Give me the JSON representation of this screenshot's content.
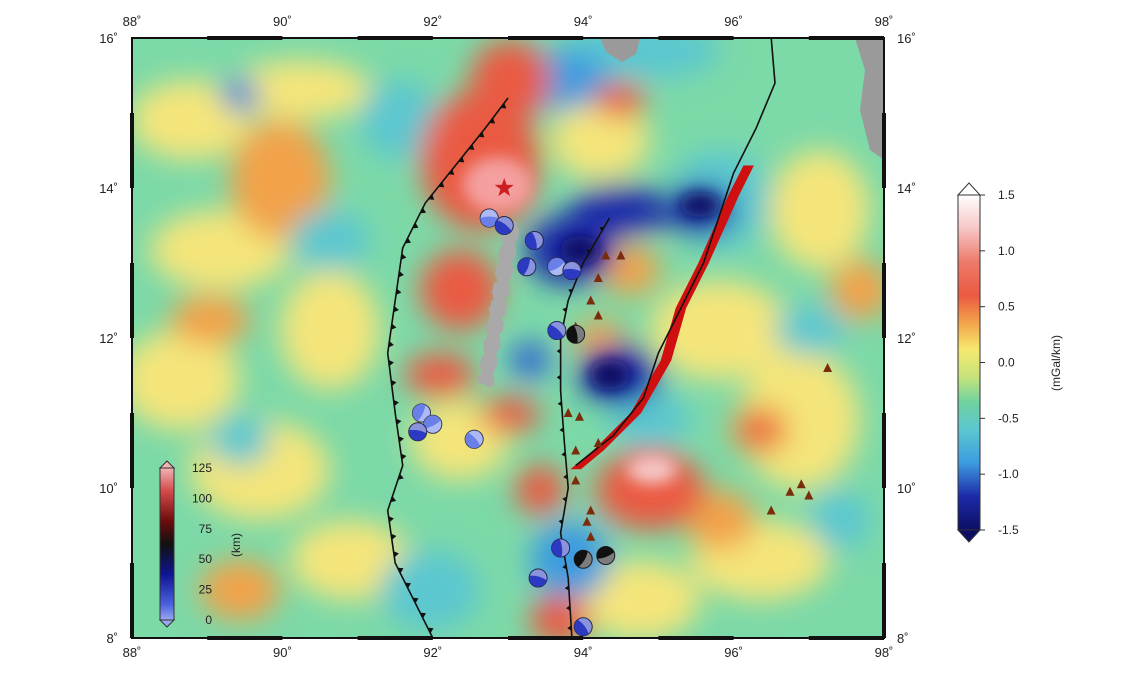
{
  "map": {
    "lon_range": [
      88,
      98
    ],
    "lat_range": [
      8,
      16
    ],
    "lon_ticks": [
      "88˚",
      "90˚",
      "92˚",
      "94˚",
      "96˚",
      "98˚"
    ],
    "lat_ticks": [
      "8˚",
      "10˚",
      "12˚",
      "14˚",
      "16˚"
    ],
    "star_epicenter": {
      "lon": 92.95,
      "lat": 14.0
    },
    "trench_line": [
      [
        93.0,
        15.2
      ],
      [
        92.7,
        14.8
      ],
      [
        92.3,
        14.3
      ],
      [
        91.9,
        13.8
      ],
      [
        91.6,
        13.2
      ],
      [
        91.5,
        12.5
      ],
      [
        91.4,
        11.8
      ],
      [
        91.5,
        11.0
      ],
      [
        91.6,
        10.3
      ],
      [
        91.4,
        9.7
      ],
      [
        91.5,
        9.0
      ],
      [
        91.8,
        8.4
      ],
      [
        92.0,
        8.0
      ]
    ],
    "back_arc_line": [
      [
        94.35,
        13.6
      ],
      [
        94.0,
        13.0
      ],
      [
        93.8,
        12.5
      ],
      [
        93.7,
        12.0
      ],
      [
        93.7,
        11.3
      ],
      [
        93.75,
        10.6
      ],
      [
        93.8,
        10.0
      ],
      [
        93.7,
        9.4
      ],
      [
        93.8,
        8.8
      ],
      [
        93.85,
        8.0
      ]
    ],
    "east_line": [
      [
        96.5,
        16.0
      ],
      [
        96.55,
        15.4
      ],
      [
        96.3,
        14.8
      ],
      [
        96.0,
        14.2
      ],
      [
        95.8,
        13.6
      ],
      [
        95.6,
        13.0
      ],
      [
        95.3,
        12.4
      ],
      [
        95.0,
        11.8
      ],
      [
        94.8,
        11.2
      ],
      [
        94.4,
        10.7
      ],
      [
        93.9,
        10.3
      ]
    ],
    "red_band": [
      [
        96.2,
        14.3
      ],
      [
        96.0,
        13.9
      ],
      [
        95.6,
        13.0
      ],
      [
        95.3,
        12.4
      ],
      [
        95.1,
        11.7
      ],
      [
        94.7,
        11.0
      ],
      [
        94.2,
        10.5
      ],
      [
        93.9,
        10.25
      ]
    ],
    "volcanoes": [
      {
        "lon": 94.3,
        "lat": 13.1
      },
      {
        "lon": 94.5,
        "lat": 13.1
      },
      {
        "lon": 94.2,
        "lat": 12.8
      },
      {
        "lon": 94.1,
        "lat": 12.5
      },
      {
        "lon": 94.2,
        "lat": 12.3
      },
      {
        "lon": 93.9,
        "lat": 12.15
      },
      {
        "lon": 93.8,
        "lat": 11.0
      },
      {
        "lon": 93.95,
        "lat": 10.95
      },
      {
        "lon": 94.2,
        "lat": 10.6
      },
      {
        "lon": 93.9,
        "lat": 10.5
      },
      {
        "lon": 93.9,
        "lat": 10.1
      },
      {
        "lon": 94.1,
        "lat": 9.7
      },
      {
        "lon": 94.05,
        "lat": 9.55
      },
      {
        "lon": 94.1,
        "lat": 9.35
      },
      {
        "lon": 96.5,
        "lat": 9.7
      },
      {
        "lon": 96.75,
        "lat": 9.95
      },
      {
        "lon": 96.9,
        "lat": 10.05
      },
      {
        "lon": 97.0,
        "lat": 9.9
      },
      {
        "lon": 97.25,
        "lat": 11.6
      }
    ],
    "focal_mechanisms": [
      {
        "lon": 92.75,
        "lat": 13.6,
        "depth": 20
      },
      {
        "lon": 92.95,
        "lat": 13.5,
        "depth": 30
      },
      {
        "lon": 93.35,
        "lat": 13.3,
        "depth": 40
      },
      {
        "lon": 93.25,
        "lat": 12.95,
        "depth": 30
      },
      {
        "lon": 93.65,
        "lat": 12.95,
        "depth": 25
      },
      {
        "lon": 93.85,
        "lat": 12.9,
        "depth": 35
      },
      {
        "lon": 93.65,
        "lat": 12.1,
        "depth": 30
      },
      {
        "lon": 93.9,
        "lat": 12.05,
        "depth": 45
      },
      {
        "lon": 91.85,
        "lat": 11.0,
        "depth": 20
      },
      {
        "lon": 92.0,
        "lat": 10.85,
        "depth": 25
      },
      {
        "lon": 91.8,
        "lat": 10.75,
        "depth": 30
      },
      {
        "lon": 92.55,
        "lat": 10.65,
        "depth": 20
      },
      {
        "lon": 93.7,
        "lat": 9.2,
        "depth": 40
      },
      {
        "lon": 94.0,
        "lat": 9.05,
        "depth": 50
      },
      {
        "lon": 94.3,
        "lat": 9.1,
        "depth": 45
      },
      {
        "lon": 93.4,
        "lat": 8.8,
        "depth": 30
      },
      {
        "lon": 94.0,
        "lat": 8.15,
        "depth": 35
      }
    ],
    "seismicity_band": [
      [
        93.05,
        13.5
      ],
      [
        93.0,
        13.2
      ],
      [
        92.95,
        12.9
      ],
      [
        92.9,
        12.6
      ],
      [
        92.85,
        12.3
      ],
      [
        92.8,
        12.0
      ],
      [
        92.75,
        11.7
      ],
      [
        92.7,
        11.4
      ]
    ]
  },
  "gravity_colorbar": {
    "labels": [
      "1.5",
      "1.0",
      "0.5",
      "0.0",
      "-0.5",
      "-1.0",
      "-1.5"
    ],
    "unit": "(mGal/km)",
    "colors": [
      "#fbf3f3",
      "#f4b3b3",
      "#ea5a42",
      "#f2a24a",
      "#f7e86f",
      "#c8e47a",
      "#6fd2a0",
      "#5cc7d0",
      "#3d9be0",
      "#2d5fd6",
      "#1c2aa8",
      "#0d0f63"
    ]
  },
  "depth_colorbar": {
    "labels": [
      "125",
      "100",
      "75",
      "50",
      "25",
      "0"
    ],
    "unit": "(km)"
  },
  "colors": {
    "background_field": "#7cd9a8",
    "positive_strong": "#ea5a42",
    "negative_strong": "#1c2aa8",
    "land": "#9a9a9a",
    "line": "#111111",
    "volcano": "#7a2d0a",
    "red_band": "#d01010",
    "star": "#cc1f1f"
  }
}
